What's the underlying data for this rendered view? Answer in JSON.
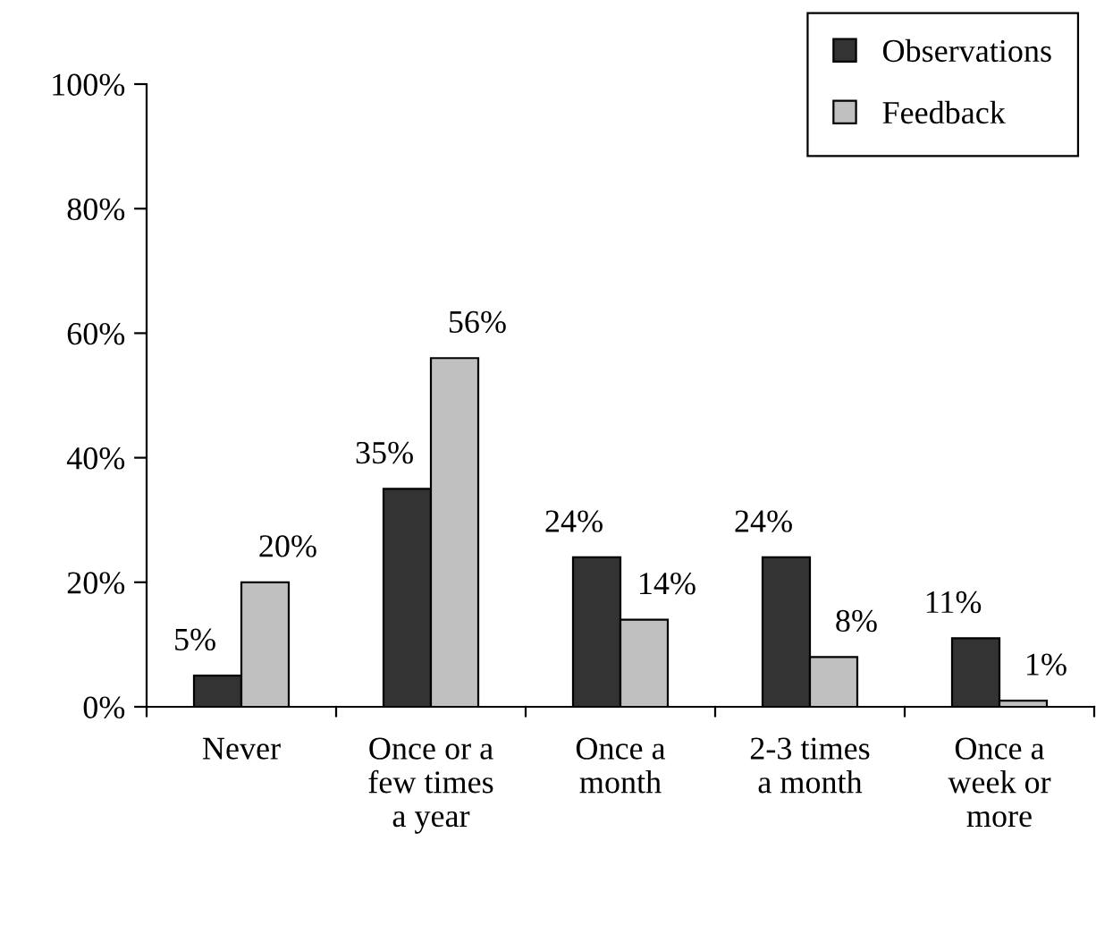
{
  "chart_data": {
    "type": "bar",
    "categories": [
      "Never",
      "Once or a\nfew times\na year",
      "Once a\nmonth",
      "2-3 times\na month",
      "Once a\nweek or\nmore"
    ],
    "series": [
      {
        "name": "Observations",
        "color": "#333333",
        "values": [
          5,
          35,
          24,
          24,
          11
        ],
        "value_labels": [
          "5%",
          "35%",
          "24%",
          "24%",
          "11%"
        ]
      },
      {
        "name": "Feedback",
        "color": "#c0c0c0",
        "values": [
          20,
          56,
          14,
          8,
          1
        ],
        "value_labels": [
          "20%",
          "56%",
          "14%",
          "8%",
          "1%"
        ]
      }
    ],
    "ylim": [
      0,
      100
    ],
    "yticks": [
      {
        "value": 0,
        "label": "0%"
      },
      {
        "value": 20,
        "label": "20%"
      },
      {
        "value": 40,
        "label": "40%"
      },
      {
        "value": 60,
        "label": "60%"
      },
      {
        "value": 80,
        "label": "80%"
      },
      {
        "value": 100,
        "label": "100%"
      }
    ],
    "grid": false,
    "legend": "top right"
  }
}
